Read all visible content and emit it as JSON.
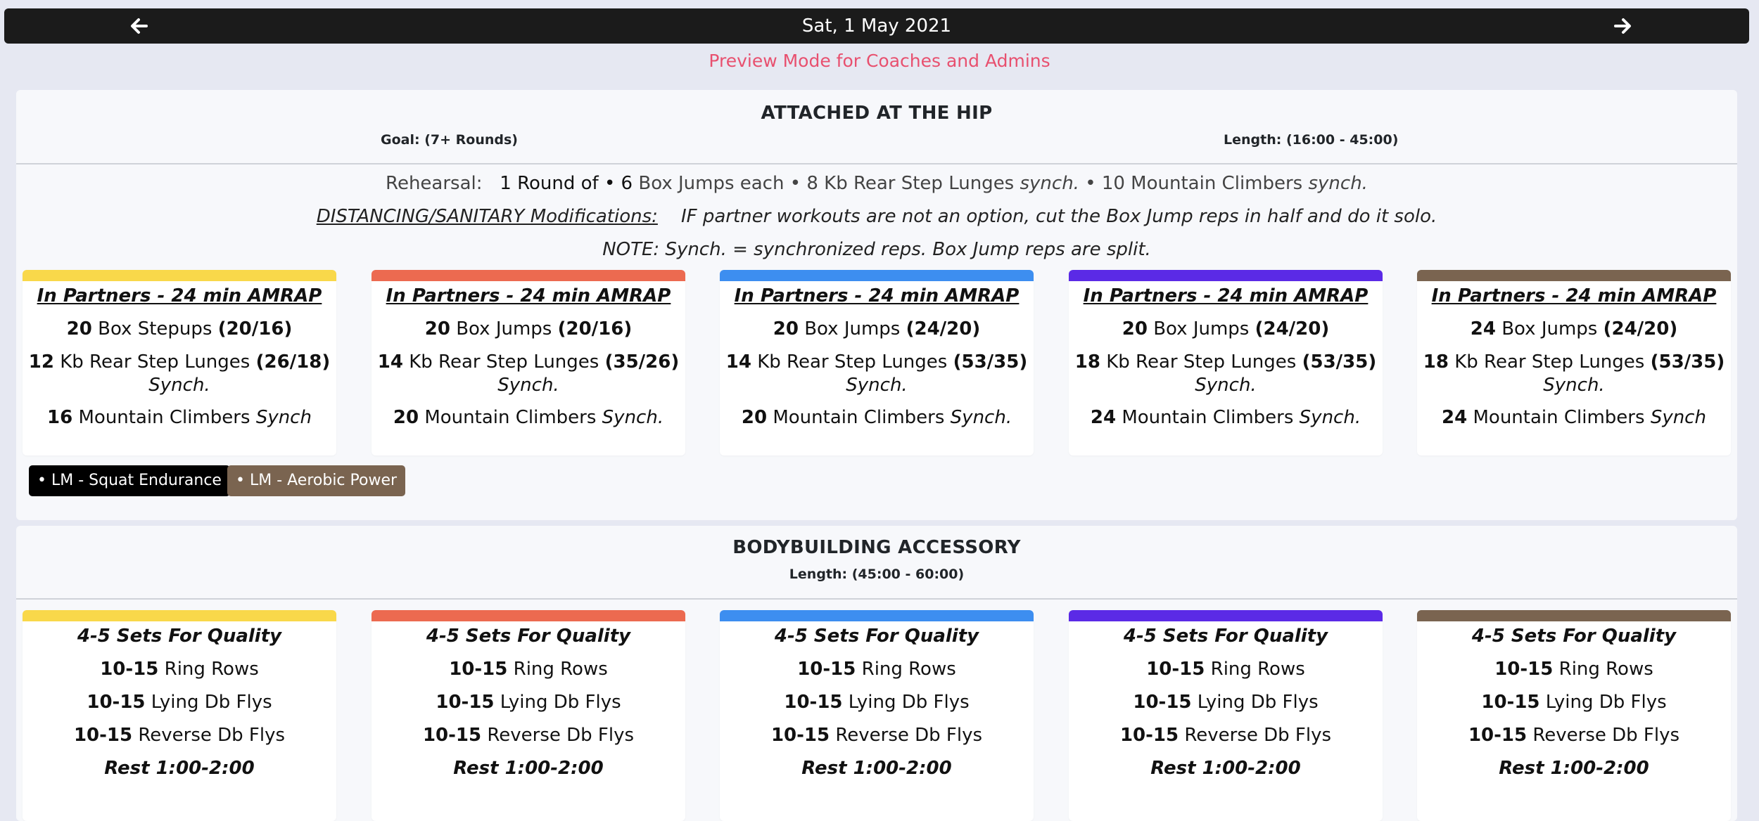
{
  "header": {
    "date": "Sat, 1 May 2021",
    "prev_icon": "arrow-left-icon",
    "next_icon": "arrow-right-icon"
  },
  "preview_text": "Preview Mode for Coaches and Admins",
  "colors": {
    "level1": "#f9d84a",
    "level2": "#ec6a50",
    "level3": "#3d8ef0",
    "level4": "#5b2ae6",
    "level5": "#7a6450",
    "preview": "#e8506f"
  },
  "section1": {
    "title": "ATTACHED AT THE HIP",
    "goal": "Goal: (7+ Rounds)",
    "length": "Length: (16:00 - 45:00)",
    "rehearsal": {
      "label": "Rehearsal:",
      "p1": "1 Round of • 6",
      "p2": " Box Jumps each • 8",
      "p3": " Kb Rear Step Lunges ",
      "p4": "synch.",
      "p5": " • 10",
      "p6": " Mountain Climbers ",
      "p7": "synch."
    },
    "distancing": {
      "label": "DISTANCING/SANITARY Modifications:",
      "text": "IF partner workouts are not an option, cut the Box Jump reps in half and do it solo."
    },
    "note": "NOTE: Synch. = synchronized reps. Box Jump reps are split.",
    "cards": [
      {
        "heading": "In Partners - 24 min AMRAP",
        "l1_num": "20",
        "l1_text": " Box Stepups ",
        "l1_load": "(20/16)",
        "l2_num": "12",
        "l2_text": " Kb Rear Step Lunges ",
        "l2_load": "(26/18)",
        "l2_sub": "Synch.",
        "l3_num": "16",
        "l3_text": " Mountain Climbers ",
        "l3_sub": "Synch"
      },
      {
        "heading": "In Partners - 24 min AMRAP",
        "l1_num": "20",
        "l1_text": " Box Jumps ",
        "l1_load": "(20/16)",
        "l2_num": "14",
        "l2_text": " Kb Rear Step Lunges ",
        "l2_load": "(35/26)",
        "l2_sub": "Synch.",
        "l3_num": "20",
        "l3_text": " Mountain Climbers ",
        "l3_sub": "Synch."
      },
      {
        "heading": "In Partners - 24 min AMRAP",
        "l1_num": "20",
        "l1_text": " Box Jumps ",
        "l1_load": "(24/20)",
        "l2_num": "14",
        "l2_text": " Kb Rear Step Lunges ",
        "l2_load": "(53/35)",
        "l2_sub": "Synch.",
        "l3_num": "20",
        "l3_text": " Mountain Climbers ",
        "l3_sub": "Synch."
      },
      {
        "heading": "In Partners - 24 min AMRAP",
        "l1_num": "20",
        "l1_text": " Box Jumps ",
        "l1_load": "(24/20)",
        "l2_num": "18",
        "l2_text": " Kb Rear Step Lunges ",
        "l2_load": "(53/35)",
        "l2_sub": "Synch.",
        "l3_num": "24",
        "l3_text": " Mountain Climbers ",
        "l3_sub": "Synch."
      },
      {
        "heading": "In Partners - 24 min AMRAP",
        "l1_num": "24",
        "l1_text": " Box Jumps ",
        "l1_load": "(24/20)",
        "l2_num": "18",
        "l2_text": " Kb Rear Step Lunges ",
        "l2_load": "(53/35)",
        "l2_sub": "Synch.",
        "l3_num": "24",
        "l3_text": " Mountain Climbers ",
        "l3_sub": "Synch"
      }
    ],
    "tags": [
      {
        "label": "• LM - Squat Endurance",
        "color": "#000000"
      },
      {
        "label": "• LM - Aerobic Power",
        "color": "#7a6450"
      }
    ]
  },
  "section2": {
    "title": "BODYBUILDING ACCESSORY",
    "length": "Length: (45:00 - 60:00)",
    "cards": [
      {
        "heading": "4-5 Sets For Quality",
        "r1n": "10-15",
        "r1t": " Ring Rows",
        "r2n": "10-15",
        "r2t": " Lying Db Flys",
        "r3n": "10-15",
        "r3t": " Reverse Db Flys",
        "rest": "Rest 1:00-2:00"
      },
      {
        "heading": "4-5 Sets For Quality",
        "r1n": "10-15",
        "r1t": " Ring Rows",
        "r2n": "10-15",
        "r2t": " Lying Db Flys",
        "r3n": "10-15",
        "r3t": " Reverse Db Flys",
        "rest": "Rest 1:00-2:00"
      },
      {
        "heading": "4-5 Sets For Quality",
        "r1n": "10-15",
        "r1t": " Ring Rows",
        "r2n": "10-15",
        "r2t": " Lying Db Flys",
        "r3n": "10-15",
        "r3t": " Reverse Db Flys",
        "rest": "Rest 1:00-2:00"
      },
      {
        "heading": "4-5 Sets For Quality",
        "r1n": "10-15",
        "r1t": " Ring Rows",
        "r2n": "10-15",
        "r2t": " Lying Db Flys",
        "r3n": "10-15",
        "r3t": " Reverse Db Flys",
        "rest": "Rest 1:00-2:00"
      },
      {
        "heading": "4-5 Sets For Quality",
        "r1n": "10-15",
        "r1t": " Ring Rows",
        "r2n": "10-15",
        "r2t": " Lying Db Flys",
        "r3n": "10-15",
        "r3t": " Reverse Db Flys",
        "rest": "Rest 1:00-2:00"
      }
    ]
  }
}
